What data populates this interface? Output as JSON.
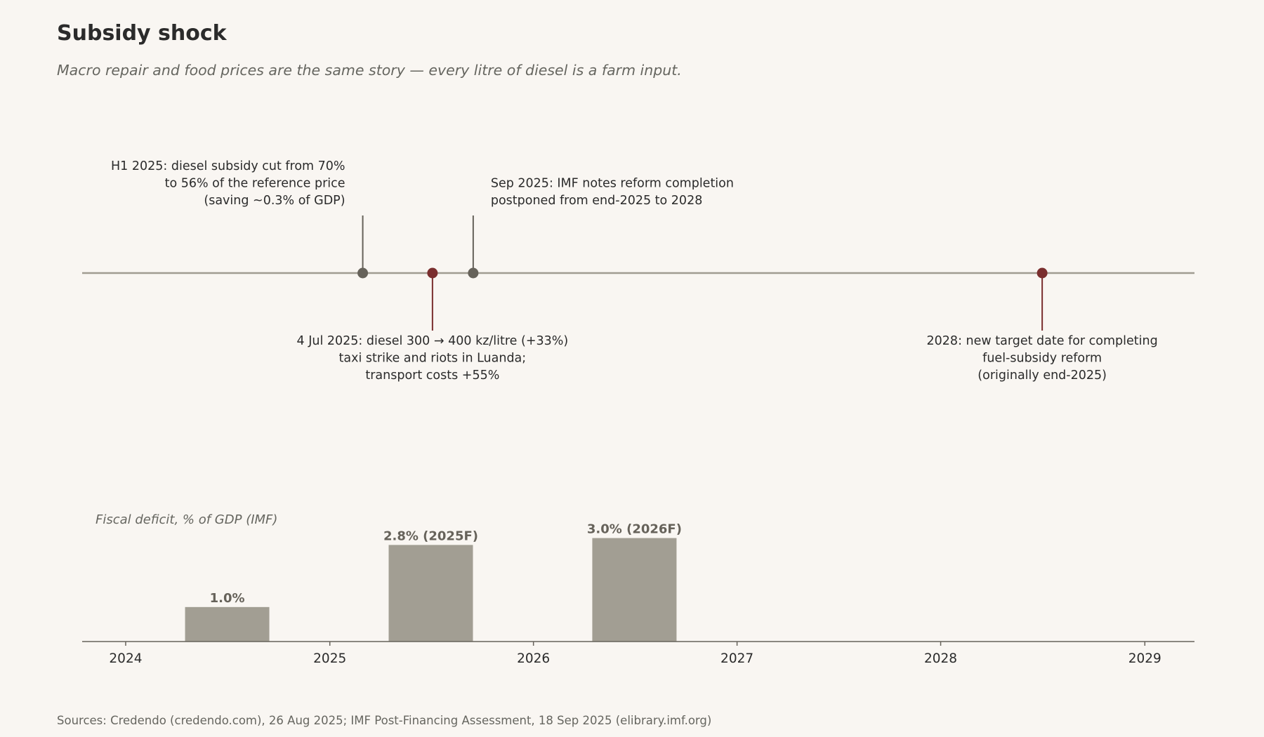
{
  "title": "Subsidy shock",
  "subtitle": "Macro repair and food prices are the same story — every litre of diesel is a farm input.",
  "footer": "Sources: Credendo (credendo.com), 26 Aug 2025; IMF Post-Financing Assessment, 18 Sep 2025 (elibrary.imf.org)",
  "colors": {
    "background": "#f9f6f2",
    "timeline": "#a09c91",
    "event_neutral": "#66625a",
    "event_highlight": "#7a2e2e",
    "bar": "#a29e93",
    "axis": "#66625a"
  },
  "chart_data": [
    {
      "type": "timeline",
      "x_range": [
        "2023-10-15",
        "2029-03-31"
      ],
      "events": [
        {
          "date": "2025-03-01",
          "side": "above",
          "color": "neutral",
          "align": "right",
          "lines": [
            "H1 2025: diesel subsidy cut from 70%",
            "to 56% of the reference price",
            "(saving ~0.3% of GDP)"
          ]
        },
        {
          "date": "2025-07-04",
          "side": "below",
          "color": "highlight",
          "align": "center",
          "lines": [
            "4 Jul 2025: diesel 300 → 400 kz/litre (+33%)",
            "taxi strike and riots in Luanda;",
            "transport costs +55%"
          ]
        },
        {
          "date": "2025-09-15",
          "side": "above",
          "color": "neutral",
          "align": "left",
          "lines": [
            "Sep 2025: IMF notes reform completion",
            "postponed from end-2025 to 2028"
          ]
        },
        {
          "date": "2028-07-01",
          "side": "below",
          "color": "highlight",
          "align": "center",
          "lines": [
            "2028: new target date for completing",
            "fuel-subsidy reform",
            "(originally end-2025)"
          ]
        }
      ]
    },
    {
      "type": "bar",
      "panel_label": "Fiscal deficit, % of GDP (IMF)",
      "categories": [
        "2024",
        "2025",
        "2026"
      ],
      "x": [
        "2024-07-01",
        "2025-07-01",
        "2026-07-01"
      ],
      "values": [
        1.0,
        2.8,
        3.0
      ],
      "labels": [
        "1.0%",
        "2.8% (2025F)",
        "3.0% (2026F)"
      ],
      "ylim": [
        0,
        3.5
      ],
      "xlim": [
        "2023-10-15",
        "2029-03-31"
      ],
      "xticks": [
        "2024",
        "2025",
        "2026",
        "2027",
        "2028",
        "2029"
      ]
    }
  ]
}
